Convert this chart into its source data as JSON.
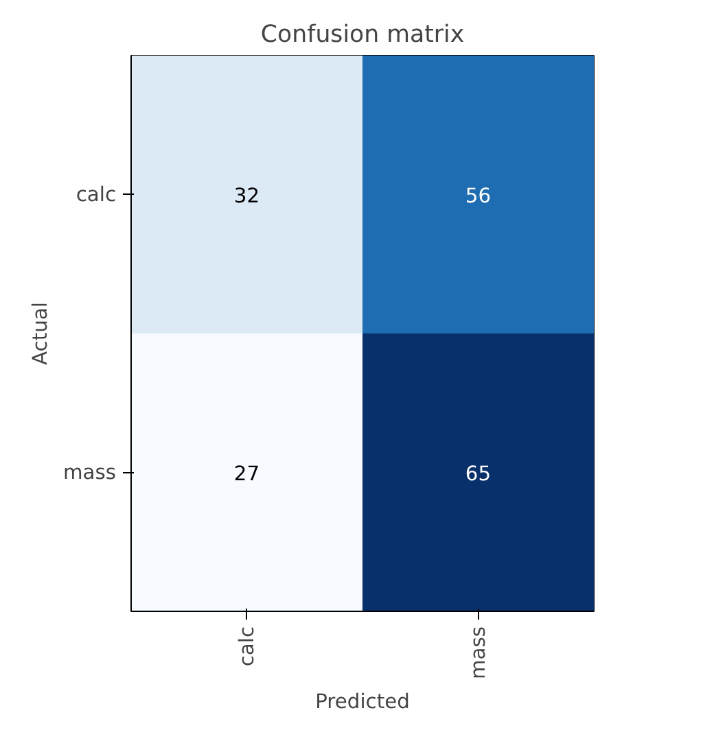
{
  "chart_data": {
    "type": "heatmap",
    "title": "Confusion matrix",
    "xlabel": "Predicted",
    "ylabel": "Actual",
    "categories": [
      "calc",
      "mass"
    ],
    "y_categories": [
      "calc",
      "mass"
    ],
    "cells": [
      [
        32,
        56
      ],
      [
        27,
        65
      ]
    ],
    "data_labels": true
  }
}
